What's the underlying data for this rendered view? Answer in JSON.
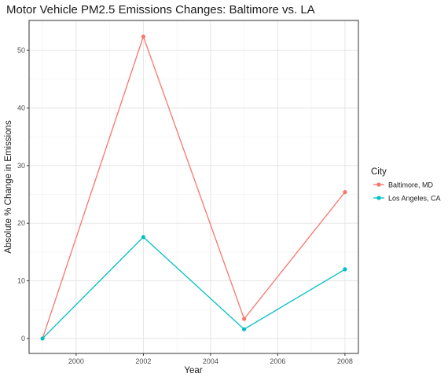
{
  "chart_data": {
    "type": "line",
    "title": "Motor Vehicle PM2.5 Emissions Changes: Baltimore vs. LA",
    "xlabel": "Year",
    "ylabel": "Absolute % Change in Emissions",
    "x": [
      1999,
      2002,
      2005,
      2008
    ],
    "xticks": [
      2000,
      2002,
      2004,
      2006,
      2008
    ],
    "xlim": [
      1998.6,
      2008.4
    ],
    "yticks": [
      0,
      10,
      20,
      30,
      40,
      50
    ],
    "ylim": [
      -2.6,
      55.2
    ],
    "grid": true,
    "legend": {
      "title": "City",
      "placement": "right"
    },
    "series": [
      {
        "name": "Baltimore, MD",
        "color": "#F8766D",
        "values": [
          0,
          52.4,
          3.4,
          25.4
        ]
      },
      {
        "name": "Los Angeles, CA",
        "color": "#00BFC4",
        "values": [
          0,
          17.6,
          1.6,
          12.0
        ]
      }
    ]
  }
}
